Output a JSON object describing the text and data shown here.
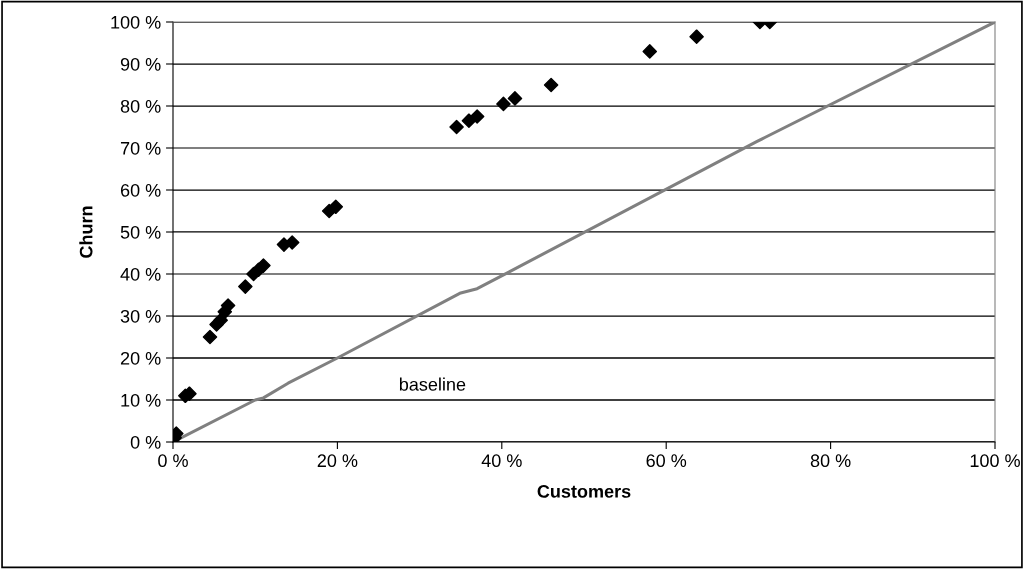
{
  "chart_data": {
    "type": "scatter",
    "xlabel": "Customers",
    "ylabel": "Churn",
    "series": [
      {
        "color": "#000000",
        "marker": "diamond",
        "x": [
          0.2,
          0.4,
          1.5,
          2.0,
          4.5,
          5.3,
          5.8,
          6.3,
          6.7,
          8.8,
          9.8,
          10.4,
          11.0,
          13.5,
          14.5,
          19.0,
          19.8,
          34.5,
          36.0,
          37.0,
          40.2,
          41.6,
          46.0,
          58.0,
          63.7,
          71.4,
          72.6
        ],
        "values": [
          1,
          2,
          11,
          11.5,
          25,
          28,
          29,
          31,
          32.5,
          37,
          40,
          41,
          42,
          47,
          47.5,
          55,
          56,
          75,
          76.5,
          77.5,
          80.5,
          81.8,
          85,
          93,
          96.5,
          100,
          100
        ]
      },
      {
        "type": "line",
        "name": "baseline",
        "color": "#808080",
        "marker": "none",
        "line_style": "solid",
        "x": [
          0,
          10,
          11,
          14,
          20,
          35,
          37,
          71,
          72,
          100
        ],
        "values": [
          0,
          10,
          10.5,
          14,
          20,
          35.5,
          36.5,
          71.5,
          72.5,
          100
        ]
      }
    ],
    "xlim": [
      0,
      100
    ],
    "xticks": [
      {
        "value": 0,
        "label": "0 %"
      },
      {
        "value": 20,
        "label": "20 %"
      },
      {
        "value": 40,
        "label": "40 %"
      },
      {
        "value": 60,
        "label": "60 %"
      },
      {
        "value": 80,
        "label": "80 %"
      },
      {
        "value": 100,
        "label": "100 %"
      }
    ],
    "ylim": [
      0,
      100
    ],
    "yticks": [
      {
        "value": 0,
        "label": "0 %"
      },
      {
        "value": 10,
        "label": "10 %"
      },
      {
        "value": 20,
        "label": "20 %"
      },
      {
        "value": 30,
        "label": "30 %"
      },
      {
        "value": 40,
        "label": "40 %"
      },
      {
        "value": 50,
        "label": "50 %"
      },
      {
        "value": 60,
        "label": "60 %"
      },
      {
        "value": 70,
        "label": "70 %"
      },
      {
        "value": 80,
        "label": "80 %"
      },
      {
        "value": 90,
        "label": "90 %"
      },
      {
        "value": 100,
        "label": "100 %"
      }
    ],
    "grid": "y",
    "legend": false
  }
}
